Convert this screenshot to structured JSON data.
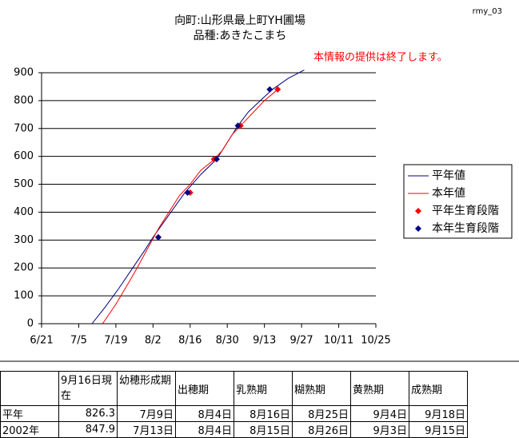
{
  "header": {
    "title": "向町:山形県最上町YH圃場",
    "subtitle": "品種:あきたこまち",
    "code": "rmy_03",
    "notice": "本情報の提供は終了します。"
  },
  "chart_data": {
    "type": "line",
    "grid": true,
    "legend": "right",
    "xlim": [
      172,
      298
    ],
    "xticks": [
      {
        "value": 172,
        "label": "6/21"
      },
      {
        "value": 186,
        "label": "7/5"
      },
      {
        "value": 200,
        "label": "7/19"
      },
      {
        "value": 214,
        "label": "8/2"
      },
      {
        "value": 228,
        "label": "8/16"
      },
      {
        "value": 242,
        "label": "8/30"
      },
      {
        "value": 256,
        "label": "9/13"
      },
      {
        "value": 270,
        "label": "9/27"
      },
      {
        "value": 284,
        "label": "10/11"
      },
      {
        "value": 298,
        "label": "10/25"
      }
    ],
    "ylim": [
      0,
      900
    ],
    "yticks": [
      0,
      100,
      200,
      300,
      400,
      500,
      600,
      700,
      800,
      900
    ],
    "series": [
      {
        "name": "平年値",
        "type": "line",
        "color": "#000080",
        "x": [
          191,
          196,
          201,
          206,
          211,
          214,
          220,
          226,
          232,
          238,
          242,
          246,
          250,
          255,
          259,
          265,
          271
        ],
        "values": [
          0,
          60,
          125,
          195,
          265,
          310,
          390,
          470,
          535,
          590,
          650,
          710,
          760,
          805,
          840,
          880,
          910
        ]
      },
      {
        "name": "本年値",
        "type": "line",
        "color": "#ff0000",
        "x": [
          195,
          200,
          205,
          208,
          212,
          216,
          220,
          224,
          228,
          232,
          236,
          240,
          244,
          248,
          252,
          256,
          261
        ],
        "values": [
          0,
          70,
          150,
          200,
          270,
          340,
          400,
          460,
          500,
          550,
          580,
          620,
          680,
          720,
          760,
          800,
          840
        ]
      },
      {
        "name": "平年生育段階",
        "type": "scatter",
        "color": "#ff0000",
        "x": [
          216,
          228,
          237,
          247,
          261
        ],
        "values": [
          310,
          470,
          590,
          710,
          840
        ]
      },
      {
        "name": "本年生育段階",
        "type": "scatter",
        "color": "#000080",
        "x": [
          216,
          227,
          238,
          246,
          258
        ],
        "values": [
          310,
          470,
          590,
          710,
          840
        ]
      }
    ]
  },
  "table": {
    "header": [
      "9月16日現在",
      "幼穂形成期",
      "出穂期",
      "乳熟期",
      "糊熟期",
      "黄熟期",
      "成熟期"
    ],
    "rows": [
      [
        "平年",
        826.3,
        "7月9日",
        "8月4日",
        "8月16日",
        "8月25日",
        "9月4日",
        "9月18日"
      ],
      [
        "2002年",
        847.9,
        "7月13日",
        "8月4日",
        "8月15日",
        "8月26日",
        "9月3日",
        "9月15日"
      ]
    ]
  }
}
